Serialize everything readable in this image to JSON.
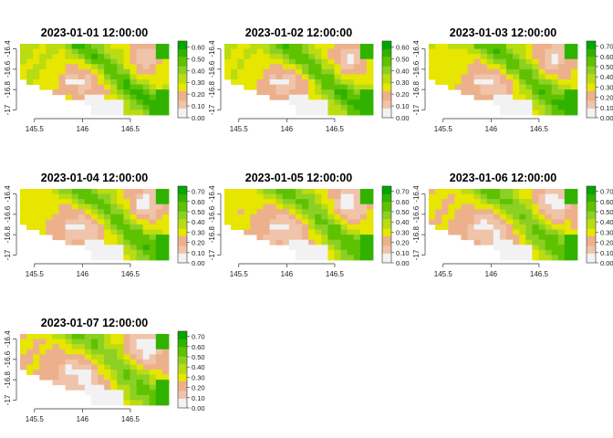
{
  "chart_data": {
    "type": "heatmap",
    "layout": "small-multiples grid, 3 columns",
    "grid": false,
    "legend_position": "right of each panel",
    "x_ticks": [
      145.5,
      146,
      146.5
    ],
    "y_ticks": [
      -17,
      -16.8,
      -16.6,
      -16.4
    ],
    "xlim": [
      145.35,
      146.9
    ],
    "ylim": [
      -17.05,
      -16.35
    ],
    "color_ramp": [
      "#f2f2f2",
      "#efc4aa",
      "#ecb18c",
      "#e6e600",
      "#b9dc12",
      "#8cd024",
      "#5ec200",
      "#31b200",
      "#00a600"
    ],
    "panels": [
      {
        "title": "2023-01-01 12:00:00",
        "zlim": [
          0,
          0.65
        ],
        "legend_ticks": [
          "0.00",
          "0.10",
          "0.20",
          "0.30",
          "0.40",
          "0.50",
          "0.60"
        ]
      },
      {
        "title": "2023-01-02 12:00:00",
        "zlim": [
          0,
          0.65
        ],
        "legend_ticks": [
          "0.00",
          "0.10",
          "0.20",
          "0.30",
          "0.40",
          "0.50",
          "0.60"
        ]
      },
      {
        "title": "2023-01-03 12:00:00",
        "zlim": [
          0,
          0.75
        ],
        "legend_ticks": [
          "0.00",
          "0.10",
          "0.20",
          "0.30",
          "0.40",
          "0.50",
          "0.60",
          "0.70"
        ]
      },
      {
        "title": "2023-01-04 12:00:00",
        "zlim": [
          0,
          0.75
        ],
        "legend_ticks": [
          "0.00",
          "0.10",
          "0.20",
          "0.30",
          "0.40",
          "0.50",
          "0.60",
          "0.70"
        ]
      },
      {
        "title": "2023-01-05 12:00:00",
        "zlim": [
          0,
          0.75
        ],
        "legend_ticks": [
          "0.00",
          "0.10",
          "0.20",
          "0.30",
          "0.40",
          "0.50",
          "0.60",
          "0.70"
        ]
      },
      {
        "title": "2023-01-06 12:00:00",
        "zlim": [
          0,
          0.75
        ],
        "legend_ticks": [
          "0.00",
          "0.10",
          "0.20",
          "0.30",
          "0.40",
          "0.50",
          "0.60",
          "0.70"
        ]
      },
      {
        "title": "2023-01-07 12:00:00",
        "zlim": [
          0,
          0.75
        ],
        "legend_ticks": [
          "0.00",
          "0.10",
          "0.20",
          "0.30",
          "0.40",
          "0.50",
          "0.60",
          "0.70"
        ]
      }
    ]
  }
}
